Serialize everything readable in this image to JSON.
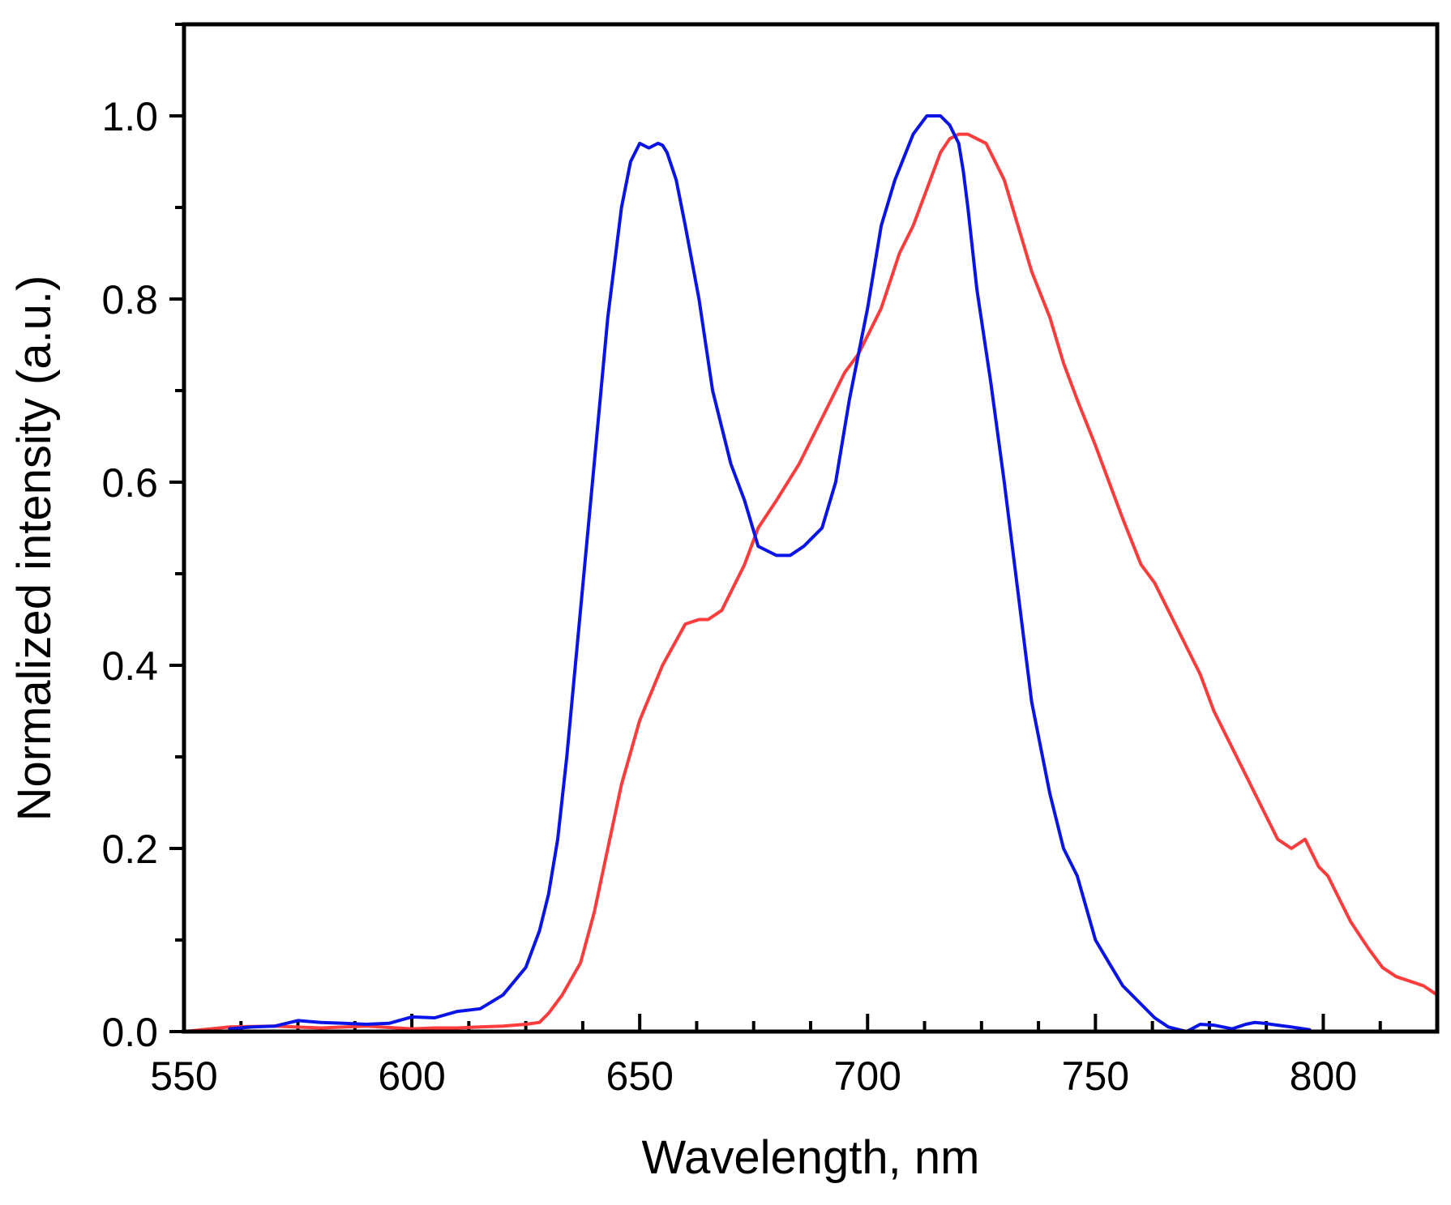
{
  "chart_data": {
    "type": "line",
    "title": "",
    "xlabel": "Wavelength, nm",
    "ylabel": "Normalized intensity (a.u.)",
    "xlim": [
      550,
      825
    ],
    "ylim": [
      0,
      1.1
    ],
    "xticks": [
      550,
      600,
      650,
      700,
      750,
      800
    ],
    "xtick_labels": [
      "550",
      "600",
      "650",
      "700",
      "750",
      "800"
    ],
    "x_minor_step": 12.5,
    "yticks": [
      0.0,
      0.2,
      0.4,
      0.6,
      0.8,
      1.0
    ],
    "ytick_labels": [
      "0.0",
      "0.2",
      "0.4",
      "0.6",
      "0.8",
      "1.0"
    ],
    "y_minor_step": 0.1,
    "grid": false,
    "legend": "none",
    "series": [
      {
        "name": "red",
        "color": "#ff3c3c",
        "x": [
          550,
          560,
          570,
          580,
          590,
          600,
          605,
          610,
          615,
          620,
          625,
          628,
          630,
          633,
          637,
          640,
          643,
          646,
          650,
          655,
          660,
          663,
          665,
          668,
          670,
          673,
          676,
          680,
          685,
          690,
          695,
          698,
          700,
          703,
          705,
          707,
          710,
          713,
          716,
          718,
          720,
          722,
          724,
          726,
          728,
          730,
          733,
          736,
          740,
          743,
          746,
          750,
          753,
          756,
          760,
          763,
          766,
          770,
          773,
          776,
          780,
          783,
          786,
          790,
          793,
          796,
          799,
          801,
          803,
          806,
          810,
          813,
          816,
          819,
          822,
          825
        ],
        "values": [
          0.0,
          0.005,
          0.006,
          0.004,
          0.006,
          0.003,
          0.004,
          0.004,
          0.005,
          0.006,
          0.008,
          0.01,
          0.02,
          0.04,
          0.075,
          0.13,
          0.2,
          0.27,
          0.34,
          0.4,
          0.445,
          0.45,
          0.45,
          0.46,
          0.48,
          0.51,
          0.55,
          0.58,
          0.62,
          0.67,
          0.72,
          0.74,
          0.76,
          0.79,
          0.82,
          0.85,
          0.88,
          0.92,
          0.96,
          0.975,
          0.98,
          0.98,
          0.975,
          0.97,
          0.95,
          0.93,
          0.88,
          0.83,
          0.78,
          0.73,
          0.69,
          0.64,
          0.6,
          0.56,
          0.51,
          0.49,
          0.46,
          0.42,
          0.39,
          0.35,
          0.31,
          0.28,
          0.25,
          0.21,
          0.2,
          0.21,
          0.18,
          0.17,
          0.15,
          0.12,
          0.09,
          0.07,
          0.06,
          0.055,
          0.05,
          0.04
        ]
      },
      {
        "name": "blue",
        "color": "#0a14e6",
        "x": [
          560,
          565,
          570,
          575,
          580,
          585,
          590,
          595,
          600,
          605,
          610,
          615,
          620,
          625,
          628,
          630,
          632,
          634,
          637,
          640,
          643,
          646,
          648,
          650,
          652,
          654,
          655,
          656,
          658,
          660,
          663,
          666,
          670,
          673,
          676,
          680,
          683,
          686,
          688,
          690,
          693,
          696,
          700,
          703,
          706,
          710,
          713,
          716,
          718,
          720,
          721,
          722,
          724,
          727,
          730,
          733,
          736,
          740,
          743,
          746,
          750,
          753,
          756,
          760,
          763,
          766,
          770,
          773,
          776,
          780,
          783,
          785,
          787,
          790,
          793,
          797
        ],
        "values": [
          0.003,
          0.005,
          0.006,
          0.012,
          0.01,
          0.009,
          0.008,
          0.009,
          0.016,
          0.015,
          0.022,
          0.025,
          0.04,
          0.07,
          0.11,
          0.15,
          0.21,
          0.3,
          0.46,
          0.62,
          0.78,
          0.9,
          0.95,
          0.97,
          0.965,
          0.97,
          0.968,
          0.96,
          0.93,
          0.88,
          0.8,
          0.7,
          0.62,
          0.58,
          0.53,
          0.52,
          0.52,
          0.53,
          0.54,
          0.55,
          0.6,
          0.69,
          0.79,
          0.88,
          0.93,
          0.98,
          1.0,
          1.0,
          0.99,
          0.97,
          0.94,
          0.9,
          0.81,
          0.71,
          0.6,
          0.48,
          0.36,
          0.26,
          0.2,
          0.17,
          0.1,
          0.075,
          0.05,
          0.03,
          0.015,
          0.005,
          0.0,
          0.008,
          0.007,
          0.003,
          0.008,
          0.01,
          0.009,
          0.007,
          0.005,
          0.002
        ]
      }
    ]
  }
}
